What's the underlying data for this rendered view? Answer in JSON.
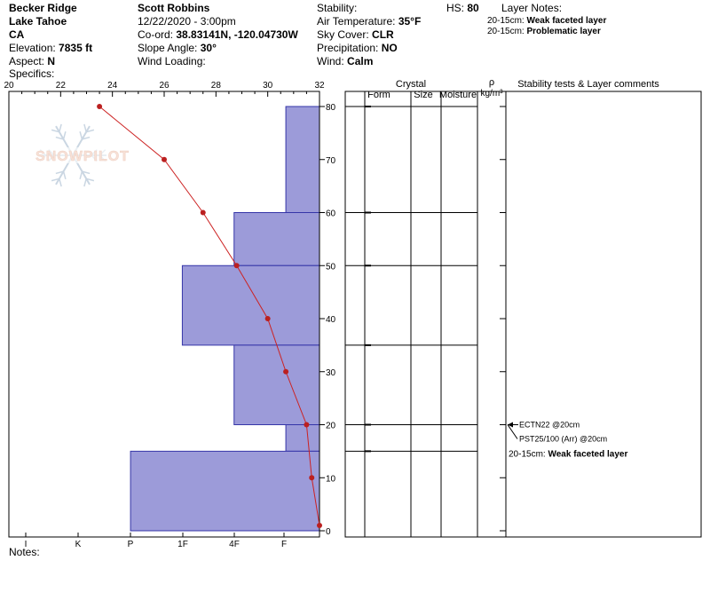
{
  "header": {
    "location": "Becker Ridge",
    "area": "Lake Tahoe",
    "state": "CA",
    "elevation_label": "Elevation:",
    "elevation_value": "7835 ft",
    "aspect_label": "Aspect:",
    "aspect_value": "N",
    "specifics_label": "Specifics:",
    "observer": "Scott Robbins",
    "datetime": "12/22/2020 - 3:00pm",
    "coord_label": "Co-ord:",
    "coord_value": "38.83141N, -120.04730W",
    "slope_label": "Slope Angle:",
    "slope_value": "30°",
    "wind_loading_label": "Wind Loading:",
    "stability_label": "Stability:",
    "air_temp_label": "Air Temperature:",
    "air_temp_value": "35°F",
    "sky_label": "Sky Cover:",
    "sky_value": "CLR",
    "precip_label": "Precipitation:",
    "precip_value": "NO",
    "wind_label": "Wind:",
    "wind_value": "Calm",
    "hs_label": "HS:",
    "hs_value": "80",
    "layer_notes_title": "Layer Notes:",
    "layer_notes": [
      {
        "depth": "20-15cm:",
        "text": "Weak faceted layer"
      },
      {
        "depth": "20-15cm:",
        "text": "Problematic layer"
      }
    ]
  },
  "logo_text": "SNOWPILOT",
  "table_headers": {
    "crystal": "Crystal",
    "form": "Form",
    "size": "Size",
    "moisture": "Moisture",
    "rho": "ρ",
    "rho_unit": "kg/m³",
    "stability": "Stability tests & Layer comments"
  },
  "notes_label": "Notes:",
  "chart_data": {
    "type": "line",
    "temp_axis": {
      "range": [
        20,
        32
      ],
      "ticks": [
        20,
        22,
        24,
        26,
        28,
        30,
        32
      ]
    },
    "hardness_axis": {
      "categories": [
        "I",
        "K",
        "P",
        "1F",
        "4F",
        "F"
      ]
    },
    "height_axis": {
      "range": [
        0,
        80
      ],
      "ticks": [
        0,
        10,
        20,
        30,
        40,
        50,
        60,
        70,
        80
      ]
    },
    "temperature_profile": [
      {
        "height": 80,
        "temp": 23.5
      },
      {
        "height": 70,
        "temp": 26.0
      },
      {
        "height": 60,
        "temp": 27.5
      },
      {
        "height": 50,
        "temp": 28.8
      },
      {
        "height": 40,
        "temp": 30.0
      },
      {
        "height": 30,
        "temp": 30.7
      },
      {
        "height": 20,
        "temp": 31.5
      },
      {
        "height": 10,
        "temp": 31.7
      },
      {
        "height": 1,
        "temp": 32.0
      }
    ],
    "layers": [
      {
        "top": 80,
        "bottom": 60,
        "hardness_x": 30.7
      },
      {
        "top": 60,
        "bottom": 50,
        "hardness_x": 28.7
      },
      {
        "top": 50,
        "bottom": 35,
        "hardness_x": 26.7
      },
      {
        "top": 35,
        "bottom": 20,
        "hardness_x": 28.7
      },
      {
        "top": 20,
        "bottom": 15,
        "hardness_x": 30.7
      },
      {
        "top": 15,
        "bottom": 0,
        "hardness_x": 24.7
      }
    ],
    "boundaries": [
      80,
      60,
      50,
      35,
      20,
      15
    ],
    "tests": [
      {
        "height": 20,
        "text": "ECTN22 @20cm"
      },
      {
        "height": 20,
        "text": "PST25/100 (Arr) @20cm"
      }
    ],
    "layer_comments": [
      {
        "height": 15,
        "depth": "20-15cm:",
        "text": "Weak faceted layer"
      }
    ]
  }
}
